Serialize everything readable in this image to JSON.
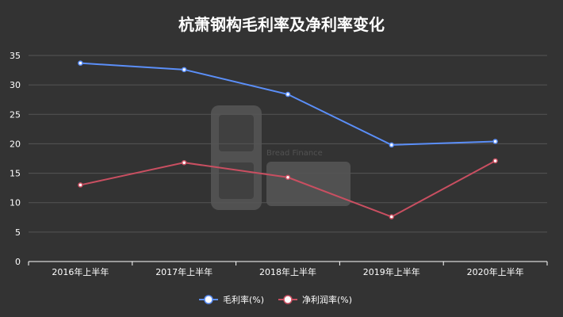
{
  "chart_data": {
    "type": "line",
    "title": "杭萧钢构毛利率及净利率变化",
    "xlabel": "",
    "ylabel": "",
    "categories": [
      "2016年上半年",
      "2017年上半年",
      "2018年上半年",
      "2019年上半年",
      "2020年上半年"
    ],
    "ylim": [
      0,
      35
    ],
    "yticks": [
      0,
      5,
      10,
      15,
      20,
      25,
      30,
      35
    ],
    "grid": true,
    "legend_position": "bottom-center",
    "series": [
      {
        "name": "毛利率(%)",
        "color": "#5b8ff9",
        "values": [
          33.7,
          32.6,
          28.4,
          19.8,
          20.4
        ]
      },
      {
        "name": "净利润率(%)",
        "color": "#c94f61",
        "values": [
          13.0,
          16.8,
          14.3,
          7.6,
          17.1
        ]
      }
    ]
  },
  "watermark": {
    "logo_text": "Bread Finance"
  }
}
